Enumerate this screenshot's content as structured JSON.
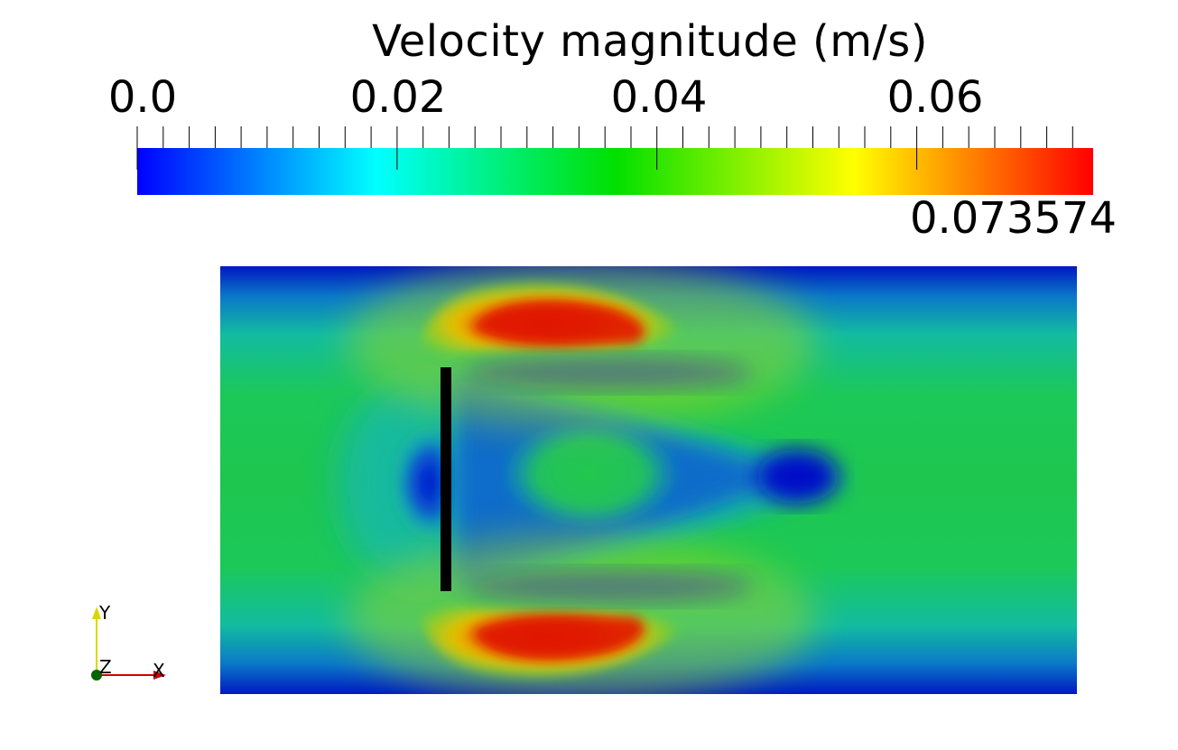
{
  "colorbar": {
    "title": "Velocity magnitude (m/s)",
    "range": [
      0.0,
      0.073574
    ],
    "tick_labels": [
      {
        "text": "0.0",
        "value": 0.0
      },
      {
        "text": "0.02",
        "value": 0.02
      },
      {
        "text": "0.04",
        "value": 0.04
      },
      {
        "text": "0.06",
        "value": 0.06
      }
    ],
    "max_label": "0.073574",
    "colors": [
      "#0000ff",
      "#00ffff",
      "#00ff00",
      "#ffff00",
      "#ff0000"
    ]
  },
  "field": {
    "min_color": "#0000c8",
    "mid_color": "#1ccc4a",
    "max_color": "#e62000",
    "obstacle_color": "#000000"
  },
  "axes": {
    "y_label": "Y",
    "z_label": "Z",
    "x_label": "X",
    "y_color": "#d8d800",
    "x_color": "#d00000",
    "z_color": "#006400"
  }
}
